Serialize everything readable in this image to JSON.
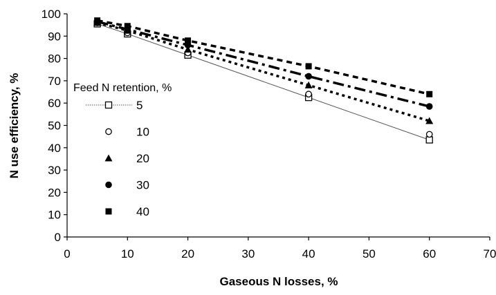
{
  "chart_data": {
    "type": "line",
    "title": "",
    "xlabel": "Gaseous N losses, %",
    "ylabel": "N use efficiency, %",
    "xlim": [
      0,
      70
    ],
    "ylim": [
      0,
      100
    ],
    "x_ticks": [
      "0",
      "10",
      "20",
      "30",
      "40",
      "50",
      "60",
      "70"
    ],
    "y_ticks": [
      "0",
      "10",
      "20",
      "30",
      "40",
      "50",
      "60",
      "70",
      "80",
      "90",
      "100"
    ],
    "grid": false,
    "legend": {
      "title": "Feed N retention, %",
      "placement": "center-left"
    },
    "x": [
      5,
      10,
      20,
      40,
      60
    ],
    "series": [
      {
        "name": "5",
        "marker": "open-square",
        "line": "solid-thin",
        "values": [
          95.5,
          91,
          81.5,
          62.5,
          43.5
        ]
      },
      {
        "name": "10",
        "marker": "open-circle",
        "line": "none",
        "values": [
          96,
          91.5,
          82.5,
          64,
          46
        ]
      },
      {
        "name": "20",
        "marker": "filled-triangle",
        "line": "dotted",
        "values": [
          96,
          92.5,
          84,
          68,
          52
        ]
      },
      {
        "name": "30",
        "marker": "filled-circle",
        "line": "dash-dot",
        "values": [
          96.5,
          93,
          86,
          72,
          58.5
        ]
      },
      {
        "name": "40",
        "marker": "filled-square",
        "line": "dashed",
        "values": [
          97,
          94.5,
          88,
          76.5,
          64
        ]
      }
    ]
  }
}
